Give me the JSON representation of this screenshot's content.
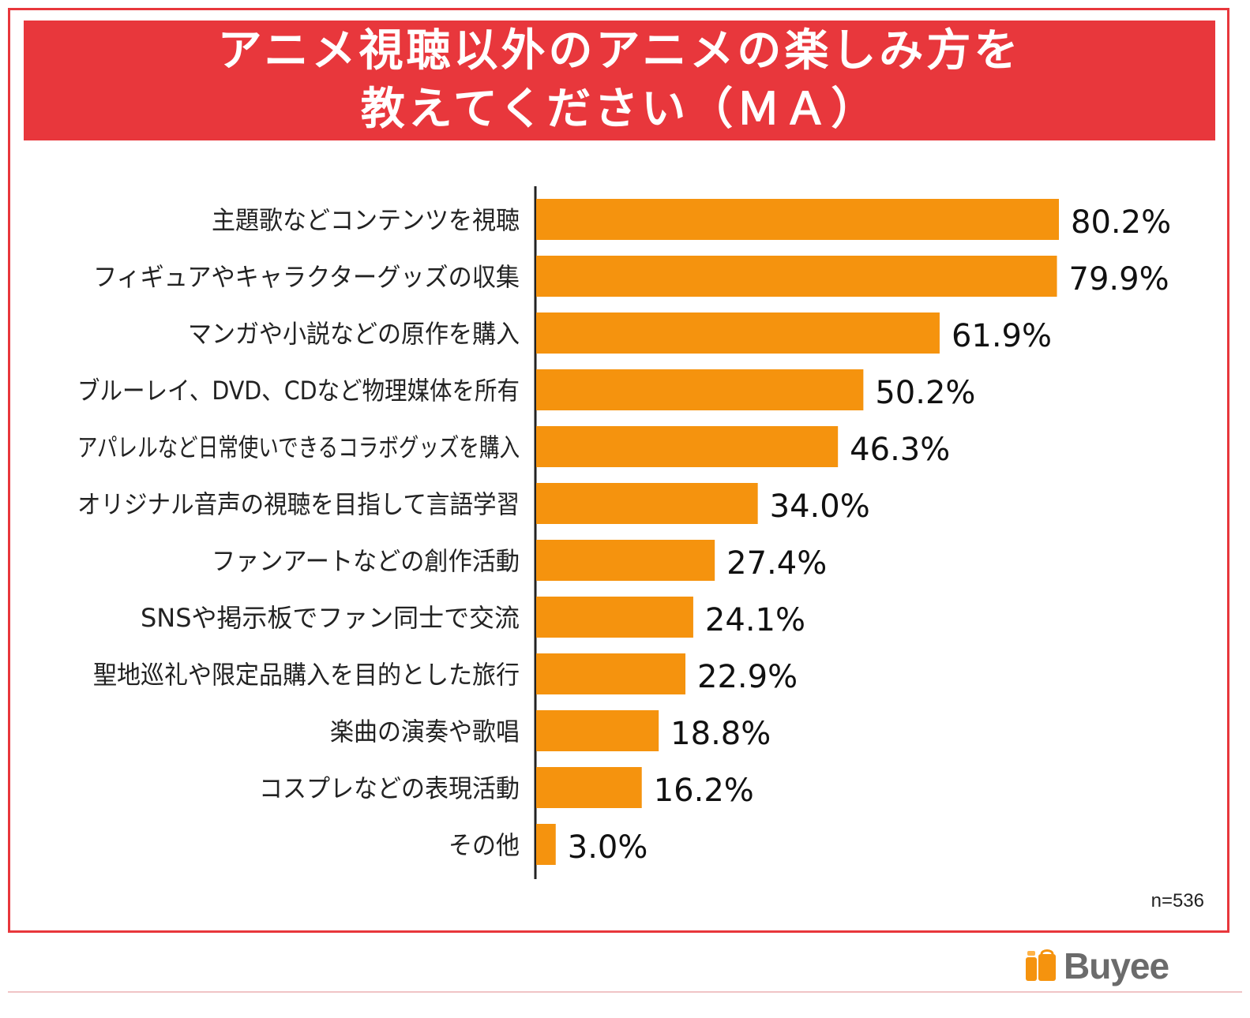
{
  "title": {
    "line1": "アニメ視聴以外のアニメの楽しみ方を",
    "line2": "教えてください（ＭＡ）"
  },
  "sample_size": "n=536",
  "logo": {
    "text": "Buyee",
    "icon": "shopping-bag-icon"
  },
  "colors": {
    "accent": "#e8373c",
    "bar": "#f5930e",
    "axis": "#222222"
  },
  "chart_data": {
    "type": "bar",
    "orientation": "horizontal",
    "categories": [
      "主題歌などコンテンツを視聴",
      "フィギュアやキャラクターグッズの収集",
      "マンガや小説などの原作を購入",
      "ブルーレイ、DVD、CDなど物理媒体を所有",
      "アパレルなど日常使いできるコラボグッズを購入",
      "オリジナル音声の視聴を目指して言語学習",
      "ファンアートなどの創作活動",
      "SNSや掲示板でファン同士で交流",
      "聖地巡礼や限定品購入を目的とした旅行",
      "楽曲の演奏や歌唱",
      "コスプレなどの表現活動",
      "その他"
    ],
    "values": [
      80.2,
      79.9,
      61.9,
      50.2,
      46.3,
      34.0,
      27.4,
      24.1,
      22.9,
      18.8,
      16.2,
      3.0
    ],
    "value_labels": [
      "80.2%",
      "79.9%",
      "61.9%",
      "50.2%",
      "46.3%",
      "34.0%",
      "27.4%",
      "24.1%",
      "22.9%",
      "18.8%",
      "16.2%",
      "3.0%"
    ],
    "unit": "%",
    "xlim": [
      0,
      100
    ],
    "grid": false,
    "legend": "none"
  }
}
